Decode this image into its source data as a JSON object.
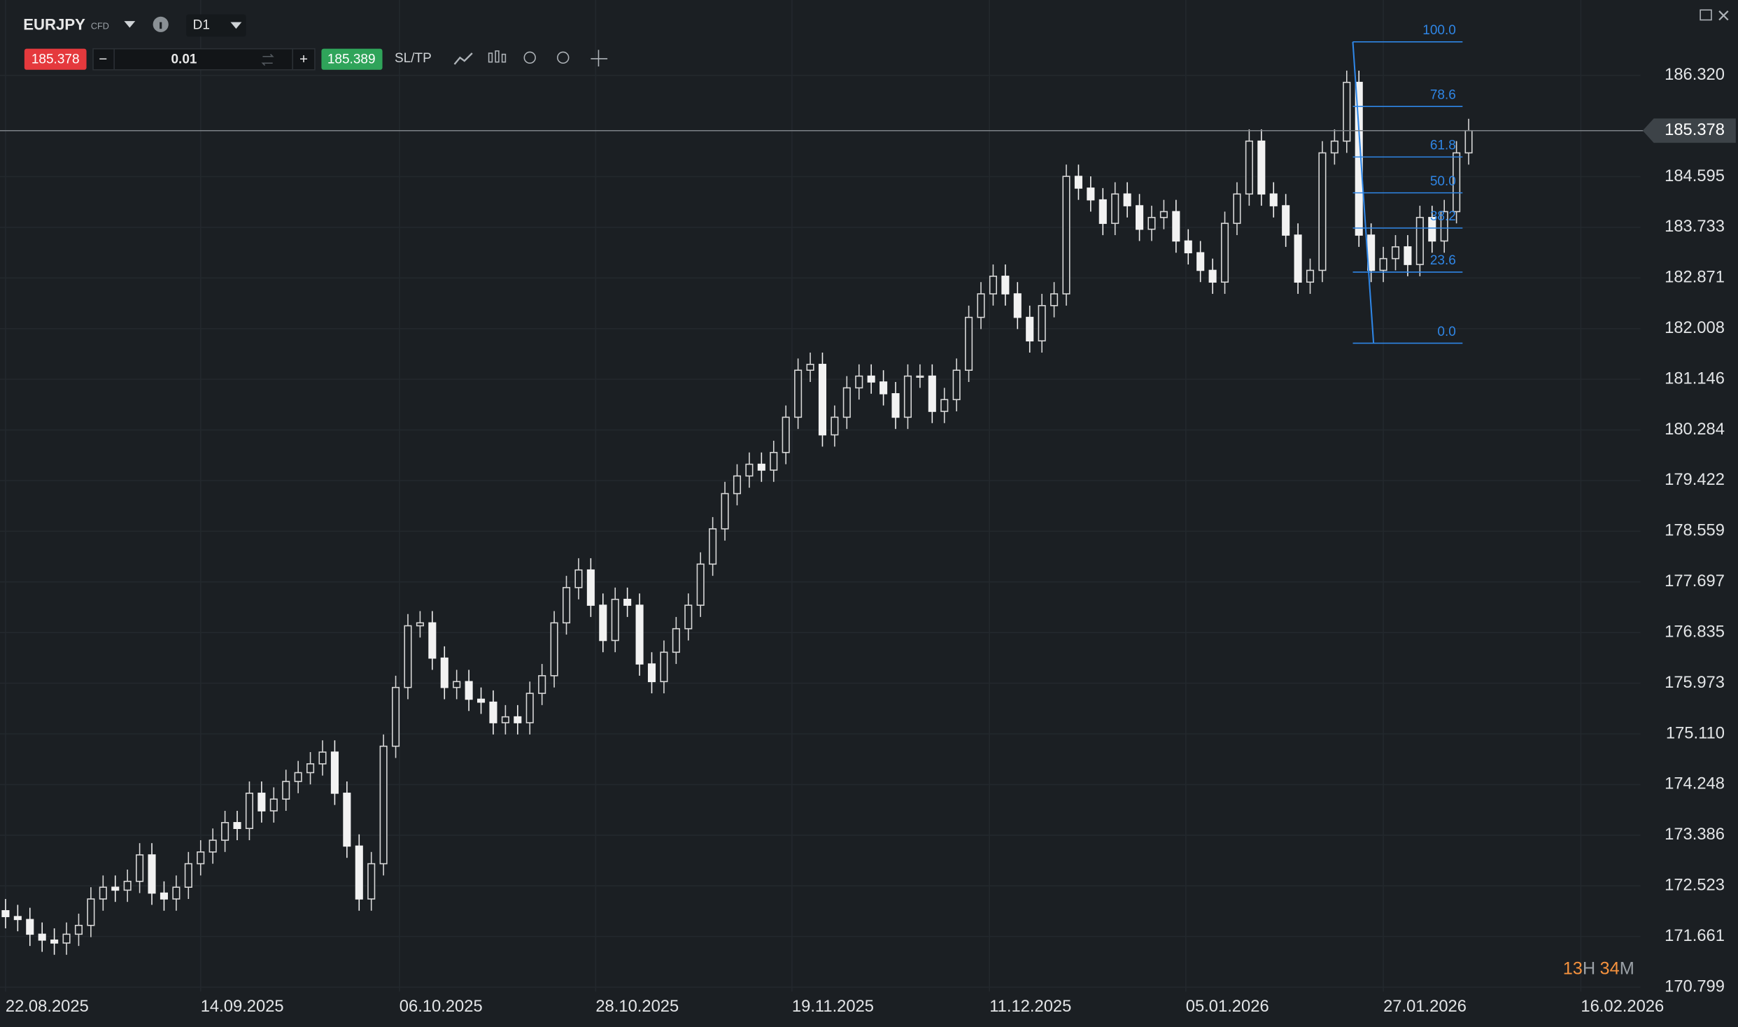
{
  "toolbar": {
    "symbol": "EURJPY",
    "instrument_type": "CFD",
    "timeframe": "D1",
    "sell_price": "185.378",
    "minus": "−",
    "quantity": "0.01",
    "plus": "+",
    "buy_price": "185.389",
    "sl_tp": "SL/TP"
  },
  "chart_data": {
    "type": "candlestick",
    "open": [
      172.1,
      172.0,
      171.95,
      171.7,
      171.6,
      171.55,
      171.7,
      171.85,
      172.3,
      172.5,
      172.45,
      172.6,
      173.05,
      172.4,
      172.3,
      172.5,
      172.9,
      173.1,
      173.3,
      173.6,
      173.5,
      174.1,
      173.8,
      174.0,
      174.3,
      174.45,
      174.6,
      174.8,
      174.1,
      173.2,
      172.3,
      172.9,
      174.9,
      175.9,
      176.95,
      177.0,
      176.4,
      175.9,
      176.0,
      175.7,
      175.65,
      175.3,
      175.4,
      175.3,
      175.8,
      176.1,
      177.0,
      177.6,
      177.9,
      177.3,
      176.7,
      177.4,
      177.3,
      176.3,
      176.0,
      176.5,
      176.9,
      177.3,
      178.0,
      178.6,
      179.2,
      179.5,
      179.7,
      179.6,
      179.9,
      180.5,
      181.3,
      181.4,
      180.2,
      180.5,
      181.0,
      181.2,
      181.1,
      180.9,
      180.5,
      181.2,
      181.2,
      180.6,
      180.8,
      181.3,
      182.2,
      182.6,
      182.9,
      182.6,
      182.2,
      181.8,
      182.4,
      182.6,
      184.6,
      184.4,
      184.2,
      183.8,
      184.3,
      184.1,
      183.7,
      183.9,
      184.0,
      183.5,
      183.3,
      183.0,
      182.8,
      183.8,
      184.3,
      185.2,
      184.3,
      184.1,
      183.6,
      182.8,
      183.0,
      185.0,
      185.2,
      186.2,
      183.6,
      183.0,
      183.2,
      183.4,
      183.1,
      183.9,
      183.5,
      184.0,
      185.0
    ],
    "high": [
      172.3,
      172.2,
      172.15,
      171.9,
      171.8,
      171.9,
      172.05,
      172.5,
      172.7,
      172.7,
      172.8,
      173.25,
      173.25,
      172.6,
      172.7,
      173.1,
      173.3,
      173.5,
      173.8,
      173.8,
      174.3,
      174.3,
      174.2,
      174.5,
      174.65,
      174.8,
      175.0,
      175.0,
      174.3,
      173.4,
      173.1,
      175.1,
      176.1,
      177.15,
      177.2,
      177.2,
      176.6,
      176.2,
      176.2,
      175.9,
      175.85,
      175.6,
      175.6,
      176.0,
      176.3,
      177.2,
      177.8,
      178.1,
      178.1,
      177.5,
      177.6,
      177.6,
      177.5,
      176.5,
      176.7,
      177.1,
      177.5,
      178.2,
      178.8,
      179.4,
      179.7,
      179.9,
      179.9,
      180.1,
      180.7,
      181.5,
      181.6,
      181.6,
      180.7,
      181.2,
      181.4,
      181.4,
      181.3,
      181.1,
      181.4,
      181.4,
      181.4,
      181.0,
      181.5,
      182.4,
      182.8,
      183.1,
      183.1,
      182.8,
      182.4,
      182.6,
      182.8,
      184.8,
      184.8,
      184.6,
      184.4,
      184.5,
      184.5,
      184.3,
      184.1,
      184.2,
      184.2,
      183.7,
      183.5,
      183.2,
      184.0,
      184.5,
      185.4,
      185.4,
      184.5,
      184.3,
      183.8,
      183.2,
      185.2,
      185.4,
      186.4,
      186.4,
      183.8,
      183.4,
      183.6,
      183.6,
      184.1,
      184.1,
      184.2,
      185.2,
      185.58
    ],
    "low": [
      171.8,
      171.75,
      171.5,
      171.4,
      171.35,
      171.35,
      171.5,
      171.65,
      172.1,
      172.25,
      172.25,
      172.4,
      172.2,
      172.1,
      172.1,
      172.3,
      172.7,
      172.9,
      173.1,
      173.3,
      173.3,
      173.6,
      173.6,
      173.8,
      174.1,
      174.25,
      174.4,
      173.9,
      173.0,
      172.1,
      172.1,
      172.7,
      174.7,
      175.7,
      176.75,
      176.2,
      175.7,
      175.7,
      175.5,
      175.45,
      175.1,
      175.1,
      175.1,
      175.1,
      175.6,
      175.9,
      176.8,
      177.4,
      177.1,
      176.5,
      176.5,
      177.1,
      176.1,
      175.8,
      175.8,
      176.3,
      176.7,
      177.1,
      177.8,
      178.4,
      179.0,
      179.3,
      179.4,
      179.4,
      179.7,
      180.3,
      181.1,
      180.0,
      180.0,
      180.3,
      180.8,
      180.9,
      180.7,
      180.3,
      180.3,
      181.0,
      180.4,
      180.4,
      180.6,
      181.1,
      182.0,
      182.4,
      182.4,
      182.0,
      181.6,
      181.6,
      182.2,
      182.4,
      184.2,
      184.0,
      183.6,
      183.6,
      183.9,
      183.5,
      183.5,
      183.7,
      183.3,
      183.1,
      182.8,
      182.6,
      182.6,
      183.6,
      184.1,
      184.1,
      183.9,
      183.4,
      182.6,
      182.6,
      182.8,
      184.8,
      185.0,
      183.4,
      182.8,
      182.8,
      183.0,
      182.9,
      182.9,
      183.3,
      183.3,
      183.8,
      184.8
    ],
    "close": [
      172.0,
      171.95,
      171.7,
      171.6,
      171.55,
      171.7,
      171.85,
      172.3,
      172.5,
      172.45,
      172.6,
      173.05,
      172.4,
      172.3,
      172.5,
      172.9,
      173.1,
      173.3,
      173.6,
      173.5,
      174.1,
      173.8,
      174.0,
      174.3,
      174.45,
      174.6,
      174.8,
      174.1,
      173.2,
      172.3,
      172.9,
      174.9,
      175.9,
      176.95,
      177.0,
      176.4,
      175.9,
      176.0,
      175.7,
      175.65,
      175.3,
      175.4,
      175.3,
      175.8,
      176.1,
      177.0,
      177.6,
      177.9,
      177.3,
      176.7,
      177.4,
      177.3,
      176.3,
      176.0,
      176.5,
      176.9,
      177.3,
      178.0,
      178.6,
      179.2,
      179.5,
      179.7,
      179.6,
      179.9,
      180.5,
      181.3,
      181.4,
      180.2,
      180.5,
      181.0,
      181.2,
      181.1,
      180.9,
      180.5,
      181.2,
      181.2,
      180.6,
      180.8,
      181.3,
      182.2,
      182.6,
      182.9,
      182.6,
      182.2,
      181.8,
      182.4,
      182.6,
      184.6,
      184.4,
      184.2,
      183.8,
      184.3,
      184.1,
      183.7,
      183.9,
      184.0,
      183.5,
      183.3,
      183.0,
      182.8,
      183.8,
      184.3,
      185.2,
      184.3,
      184.1,
      183.6,
      182.8,
      183.0,
      185.0,
      185.2,
      186.2,
      183.6,
      183.0,
      183.2,
      183.4,
      183.1,
      183.9,
      183.5,
      184.0,
      185.0,
      185.378
    ],
    "up_color": "#d8d8d8",
    "down_color": "#f2f2f2",
    "ylim": [
      170.724,
      187.602
    ],
    "yticks": [
      {
        "value": 186.32,
        "label": "186.320"
      },
      184.595,
      183.733,
      182.871,
      182.008,
      181.146,
      180.284,
      179.422,
      178.559,
      177.697,
      176.835,
      175.973,
      {
        "value": 175.11,
        "label": "175.110"
      },
      174.248,
      173.386,
      172.523,
      171.661,
      170.799
    ],
    "xlim": [
      -0.4545,
      134.09
    ],
    "xticks": [
      {
        "value": 0,
        "label": "22.08.2025"
      },
      {
        "value": 16,
        "label": "14.09.2025"
      },
      {
        "value": 32.3,
        "label": "06.10.2025"
      },
      {
        "value": 48.4,
        "label": "28.10.2025"
      },
      {
        "value": 64.5,
        "label": "19.11.2025"
      },
      {
        "value": 80.7,
        "label": "11.12.2025"
      },
      {
        "value": 96.8,
        "label": "05.01.2026"
      },
      {
        "value": 113,
        "label": "27.01.2026"
      },
      {
        "value": 129.2,
        "label": "16.02.2026"
      }
    ],
    "grid": true,
    "last_price": 185.378,
    "fibonacci": {
      "color": "#2f86e6",
      "levels": [
        {
          "ratio": "100.0",
          "price": 186.89
        },
        {
          "ratio": "78.6",
          "price": 185.79
        },
        {
          "ratio": "61.8",
          "price": 184.93
        },
        {
          "ratio": "50.0",
          "price": 184.32
        },
        {
          "ratio": "38.2",
          "price": 183.72
        },
        {
          "ratio": "23.6",
          "price": 182.97
        },
        {
          "ratio": "0.0",
          "price": 181.76
        }
      ]
    }
  },
  "countdown": {
    "hours": "13",
    "hours_unit": "H",
    "minutes": "34",
    "minutes_unit": "M"
  }
}
